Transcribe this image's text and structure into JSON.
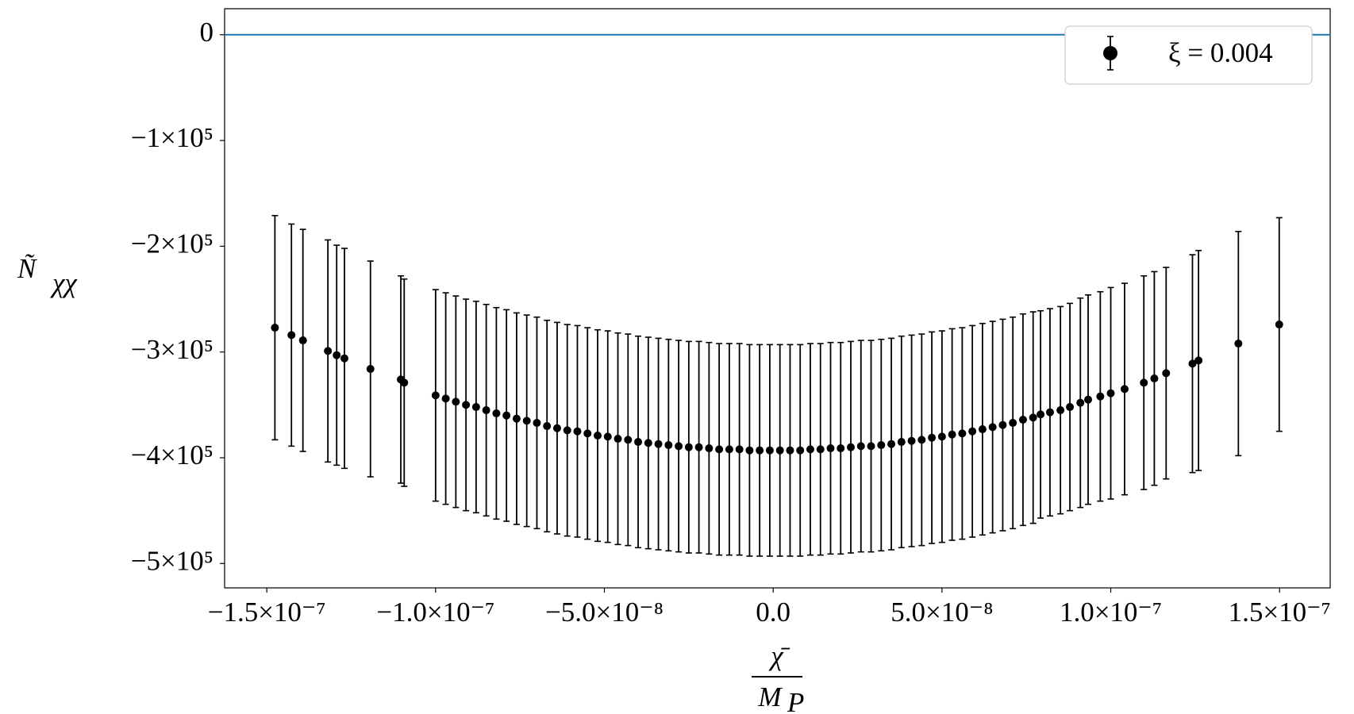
{
  "chart_data": {
    "type": "errorbar",
    "y_label": "Ñ",
    "y_label_sub": "χχ",
    "x_label_numerator": "χ̄",
    "x_label_denominator": "M",
    "x_label_denominator_sub": "P",
    "xlim": [
      -1.625e-07,
      1.65e-07
    ],
    "ylim": [
      -523000,
      24600
    ],
    "xticks": [
      {
        "value": -1.5e-07,
        "label": "−1.5×10⁻⁷"
      },
      {
        "value": -1e-07,
        "label": "−1.0×10⁻⁷"
      },
      {
        "value": -5e-08,
        "label": "−5.0×10⁻⁸"
      },
      {
        "value": 0,
        "label": "0.0"
      },
      {
        "value": 5e-08,
        "label": "5.0×10⁻⁸"
      },
      {
        "value": 1e-07,
        "label": "1.0×10⁻⁷"
      },
      {
        "value": 1.5e-07,
        "label": "1.5×10⁻⁷"
      }
    ],
    "yticks": [
      0,
      {
        "value": -100000,
        "label": "−1×10⁵"
      },
      {
        "value": -200000,
        "label": "−2×10⁵"
      },
      {
        "value": -300000,
        "label": "−3×10⁵"
      },
      {
        "value": -400000,
        "label": "−4×10⁵"
      },
      {
        "value": -500000,
        "label": "−5×10⁵"
      }
    ],
    "hline": {
      "value": 0,
      "color": "#1f77b4"
    },
    "legend": "upper right",
    "series": [
      {
        "name": "ξ = 0.004",
        "color": "#000000",
        "x": [
          -1.476e-07,
          -1.427e-07,
          -1.393e-07,
          -1.319e-07,
          -1.293e-07,
          -1.27e-07,
          -1.193e-07,
          -1.103e-07,
          -1.093e-07,
          -1e-07,
          -9.7e-08,
          -9.4e-08,
          -9.1e-08,
          -8.8e-08,
          -8.5e-08,
          -8.2e-08,
          -7.9e-08,
          -7.6e-08,
          -7.3e-08,
          -7e-08,
          -6.7e-08,
          -6.4e-08,
          -6.1e-08,
          -5.8e-08,
          -5.5e-08,
          -5.2e-08,
          -4.9e-08,
          -4.6e-08,
          -4.3e-08,
          -4e-08,
          -3.7e-08,
          -3.4e-08,
          -3.1e-08,
          -2.8e-08,
          -2.5e-08,
          -2.2e-08,
          -1.9e-08,
          -1.6e-08,
          -1.3e-08,
          -1e-08,
          -7e-09,
          -4e-09,
          -1e-09,
          2e-09,
          5e-09,
          8e-09,
          1.1e-08,
          1.4e-08,
          1.7e-08,
          2e-08,
          2.3e-08,
          2.6e-08,
          2.9e-08,
          3.2e-08,
          3.5e-08,
          3.8e-08,
          4.1e-08,
          4.4e-08,
          4.7e-08,
          5e-08,
          5.3e-08,
          5.6e-08,
          5.9e-08,
          6.2e-08,
          6.5e-08,
          6.8e-08,
          7.1e-08,
          7.4e-08,
          7.7e-08,
          7.92e-08,
          8.2e-08,
          8.51e-08,
          8.79e-08,
          9.1e-08,
          9.33e-08,
          9.69e-08,
          1e-07,
          1.041e-07,
          1.098e-07,
          1.129e-07,
          1.164e-07,
          1.242e-07,
          1.26e-07,
          1.378e-07,
          1.499e-07
        ],
        "y": [
          -277000,
          -284000,
          -289000,
          -299000,
          -303000,
          -306000,
          -316000,
          -326000,
          -329000,
          -341000,
          -344000,
          -347000,
          -350000,
          -352000,
          -355000,
          -358000,
          -360000,
          -363000,
          -365000,
          -367000,
          -370000,
          -372000,
          -374000,
          -375000,
          -377000,
          -379000,
          -380000,
          -382000,
          -383000,
          -385000,
          -386000,
          -387000,
          -388000,
          -389000,
          -390000,
          -390000,
          -391000,
          -392000,
          -392000,
          -392000,
          -393000,
          -393000,
          -393000,
          -393000,
          -393000,
          -393000,
          -392000,
          -392000,
          -391000,
          -391000,
          -390000,
          -389000,
          -389000,
          -388000,
          -387000,
          -385000,
          -384000,
          -383000,
          -381000,
          -380000,
          -378000,
          -377000,
          -375000,
          -373000,
          -371000,
          -369000,
          -367000,
          -364000,
          -362000,
          -359000,
          -357000,
          -355000,
          -352000,
          -348000,
          -345000,
          -342000,
          -339000,
          -335000,
          -329000,
          -325000,
          -320000,
          -311000,
          -308000,
          -292000,
          -274000
        ],
        "errors": [
          106000,
          105000,
          105000,
          105000,
          104000,
          104000,
          102000,
          98000,
          98000,
          100000,
          100000,
          100000,
          100000,
          100000,
          100000,
          100000,
          100000,
          100000,
          100000,
          100000,
          100000,
          100000,
          100000,
          100000,
          100000,
          100000,
          100000,
          100000,
          100000,
          100000,
          100000,
          100000,
          100000,
          100000,
          100000,
          100000,
          100000,
          100000,
          100000,
          100000,
          100000,
          100000,
          100000,
          100000,
          100000,
          100000,
          100000,
          100000,
          100000,
          100000,
          100000,
          100000,
          100000,
          100000,
          100000,
          100000,
          100000,
          100000,
          100000,
          100000,
          100000,
          100000,
          100000,
          100000,
          100000,
          100000,
          100000,
          100000,
          100000,
          98000,
          98000,
          98000,
          98000,
          99000,
          99000,
          99000,
          100000,
          100000,
          101000,
          101000,
          100000,
          103000,
          104000,
          106000,
          101000
        ]
      }
    ]
  }
}
